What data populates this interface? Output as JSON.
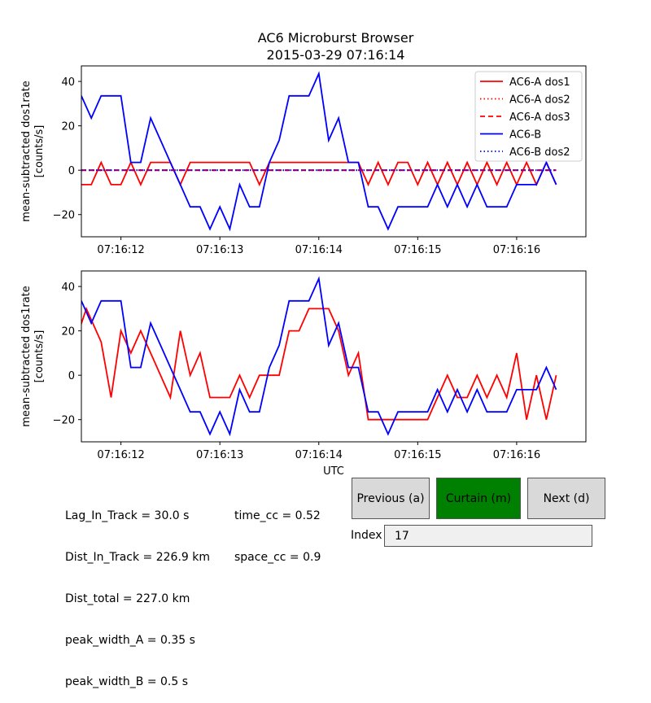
{
  "title": {
    "line1": "AC6 Microburst Browser",
    "line2": "2015-03-29 07:16:14"
  },
  "stats": {
    "left": [
      "Lag_In_Track = 30.0 s",
      "Dist_In_Track = 226.9 km",
      "Dist_total = 227.0 km",
      "peak_width_A = 0.35 s",
      "peak_width_B = 0.5 s"
    ],
    "right": [
      "time_cc = 0.52",
      "space_cc = 0.9"
    ]
  },
  "buttons": {
    "previous": "Previous (a)",
    "curtain": "Curtain (m)",
    "next": "Next (d)"
  },
  "index": {
    "label": "Index",
    "value": "17"
  },
  "colors": {
    "red": "#ff0000",
    "blue": "#0000ff",
    "purple": "#800080",
    "curtain_button": "#008000",
    "button_grey": "#d9d9d9"
  },
  "chart_data": [
    {
      "type": "line",
      "ylabel": "mean-subtracted dos1rate\n[counts/s]",
      "xlabel": "",
      "ylim": [
        -30,
        47
      ],
      "xlim": [
        11.6,
        16.7
      ],
      "x_ticks": [
        12,
        13,
        14,
        15,
        16
      ],
      "x_tick_labels": [
        "07:16:12",
        "07:16:13",
        "07:16:14",
        "07:16:15",
        "07:16:16"
      ],
      "y_ticks": [
        -20,
        0,
        20,
        40
      ],
      "y_tick_labels": [
        "−20",
        "0",
        "20",
        "40"
      ],
      "legend": {
        "placement": "top-right",
        "entries": [
          "AC6-A dos1",
          "AC6-A dos2",
          "AC6-A dos3",
          "AC6-B",
          "AC6-B dos2"
        ]
      },
      "x": [
        11.6,
        11.7,
        11.8,
        11.9,
        12.0,
        12.1,
        12.2,
        12.3,
        12.4,
        12.5,
        12.6,
        12.7,
        12.8,
        12.9,
        13.0,
        13.1,
        13.2,
        13.3,
        13.4,
        13.5,
        13.6,
        13.7,
        13.8,
        13.9,
        14.0,
        14.1,
        14.2,
        14.3,
        14.4,
        14.5,
        14.6,
        14.7,
        14.8,
        14.9,
        15.0,
        15.1,
        15.2,
        15.3,
        15.4,
        15.5,
        15.6,
        15.7,
        15.8,
        15.9,
        16.0,
        16.1,
        16.2,
        16.3,
        16.4
      ],
      "series": [
        {
          "name": "AC6-A dos1",
          "color": "#ff0000",
          "style": "solid",
          "values": [
            -6.5,
            -6.5,
            3.5,
            -6.5,
            -6.5,
            3.5,
            -6.5,
            3.5,
            3.5,
            3.5,
            -6.5,
            3.5,
            3.5,
            3.5,
            3.5,
            3.5,
            3.5,
            3.5,
            -6.5,
            3.5,
            3.5,
            3.5,
            3.5,
            3.5,
            3.5,
            3.5,
            3.5,
            3.5,
            3.5,
            -6.5,
            3.5,
            -6.5,
            3.5,
            3.5,
            -6.5,
            3.5,
            -6.5,
            3.5,
            -6.5,
            3.5,
            -6.5,
            3.5,
            -6.5,
            3.5,
            -6.5,
            3.5,
            -6.5,
            3.5,
            -6.5
          ]
        },
        {
          "name": "AC6-A dos2",
          "color": "#ff0000",
          "style": "dotted",
          "values": "constant 0",
          "value": 0
        },
        {
          "name": "AC6-A dos3",
          "color": "#ff0000",
          "style": "dashed",
          "value": 0
        },
        {
          "name": "AC6-B",
          "color": "#0000ff",
          "style": "solid",
          "values": [
            33.5,
            23.5,
            33.5,
            33.5,
            33.5,
            3.5,
            3.5,
            23.5,
            13.5,
            3.5,
            -6.5,
            -16.5,
            -16.5,
            -26.5,
            -16.5,
            -26.5,
            -6.5,
            -16.5,
            -16.5,
            3.5,
            13.5,
            33.5,
            33.5,
            33.5,
            43.5,
            13.5,
            23.5,
            3.5,
            3.5,
            -16.5,
            -16.5,
            -26.5,
            -16.5,
            -16.5,
            -16.5,
            -16.5,
            -6.5,
            -16.5,
            -6.5,
            -16.5,
            -6.5,
            -16.5,
            -16.5,
            -16.5,
            -6.5,
            -6.5,
            -6.5,
            3.5,
            -6.5
          ]
        },
        {
          "name": "AC6-B dos2",
          "color": "#0000ff",
          "style": "dotted",
          "value": 0
        }
      ]
    },
    {
      "type": "line",
      "ylabel": "mean-subtracted dos1rate\n[counts/s]",
      "xlabel": "UTC",
      "ylim": [
        -30,
        47
      ],
      "xlim": [
        11.6,
        16.7
      ],
      "x_ticks": [
        12,
        13,
        14,
        15,
        16
      ],
      "x_tick_labels": [
        "07:16:12",
        "07:16:13",
        "07:16:14",
        "07:16:15",
        "07:16:16"
      ],
      "y_ticks": [
        -20,
        0,
        20,
        40
      ],
      "y_tick_labels": [
        "−20",
        "0",
        "20",
        "40"
      ],
      "series": [
        {
          "color": "#ff0000",
          "style": "solid",
          "x": [
            11.5,
            11.65,
            11.8,
            11.9,
            12.0,
            12.1,
            12.2,
            12.3,
            12.4,
            12.5,
            12.6,
            12.7,
            12.8,
            12.9,
            13.0,
            13.1,
            13.2,
            13.3,
            13.4,
            13.5,
            13.6,
            13.7,
            13.8,
            13.9,
            14.0,
            14.1,
            14.2,
            14.3,
            14.4,
            14.5,
            14.6,
            14.7,
            14.8,
            14.9,
            15.0,
            15.1,
            15.2,
            15.3,
            15.4,
            15.5,
            15.6,
            15.7,
            15.8,
            15.9,
            16.0,
            16.1,
            16.2,
            16.3,
            16.4
          ],
          "values": [
            10,
            30,
            15,
            -10,
            20,
            10,
            20,
            10,
            0,
            -10,
            20,
            0,
            10,
            -10,
            -10,
            -10,
            0,
            -10,
            0,
            0,
            0,
            20,
            20,
            30,
            30,
            30,
            20,
            0,
            10,
            -20,
            -20,
            -20,
            -20,
            -20,
            -20,
            -20,
            -10,
            0,
            -10,
            -10,
            0,
            -10,
            0,
            -10,
            10,
            -20,
            0,
            -20,
            0
          ]
        },
        {
          "color": "#0000ff",
          "style": "solid",
          "x": [
            11.6,
            11.7,
            11.8,
            11.9,
            12.0,
            12.1,
            12.2,
            12.3,
            12.4,
            12.5,
            12.6,
            12.7,
            12.8,
            12.9,
            13.0,
            13.1,
            13.2,
            13.3,
            13.4,
            13.5,
            13.6,
            13.7,
            13.8,
            13.9,
            14.0,
            14.1,
            14.2,
            14.3,
            14.4,
            14.5,
            14.6,
            14.7,
            14.8,
            14.9,
            15.0,
            15.1,
            15.2,
            15.3,
            15.4,
            15.5,
            15.6,
            15.7,
            15.8,
            15.9,
            16.0,
            16.1,
            16.2,
            16.3,
            16.4
          ],
          "values": [
            33.5,
            23.5,
            33.5,
            33.5,
            33.5,
            3.5,
            3.5,
            23.5,
            13.5,
            3.5,
            -6.5,
            -16.5,
            -16.5,
            -26.5,
            -16.5,
            -26.5,
            -6.5,
            -16.5,
            -16.5,
            3.5,
            13.5,
            33.5,
            33.5,
            33.5,
            43.5,
            13.5,
            23.5,
            3.5,
            3.5,
            -16.5,
            -16.5,
            -26.5,
            -16.5,
            -16.5,
            -16.5,
            -16.5,
            -6.5,
            -16.5,
            -6.5,
            -16.5,
            -6.5,
            -16.5,
            -16.5,
            -16.5,
            -6.5,
            -6.5,
            -6.5,
            3.5,
            -6.5
          ]
        }
      ]
    }
  ]
}
